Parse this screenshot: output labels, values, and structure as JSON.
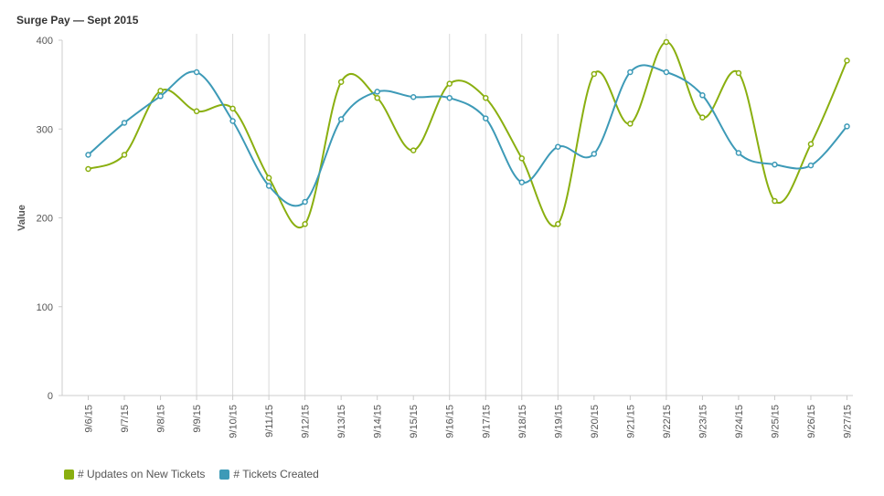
{
  "title": "Surge Pay — Sept 2015",
  "colors": {
    "series_1": "#8aaf10",
    "series_2": "#3d9ab7",
    "grid": "#d9d9d9",
    "axis": "#cccccc"
  },
  "chart_data": {
    "type": "line",
    "title": "Surge Pay — Sept 2015",
    "xlabel": "",
    "ylabel": "Value",
    "ylim": [
      0,
      400
    ],
    "yticks": [
      "0",
      "100",
      "200",
      "300",
      "400"
    ],
    "categories": [
      "9/6/15",
      "9/7/15",
      "9/8/15",
      "9/9/15",
      "9/10/15",
      "9/11/15",
      "9/12/15",
      "9/13/15",
      "9/14/15",
      "9/15/15",
      "9/16/15",
      "9/17/15",
      "9/18/15",
      "9/19/15",
      "9/20/15",
      "9/21/15",
      "9/22/15",
      "9/23/15",
      "9/24/15",
      "9/25/15",
      "9/26/15",
      "9/27/15"
    ],
    "vertical_lines_at": [
      "9/9/15",
      "9/10/15",
      "9/11/15",
      "9/12/15",
      "9/16/15",
      "9/17/15",
      "9/18/15",
      "9/19/15",
      "9/22/15"
    ],
    "legend_position": "bottom-left",
    "series": [
      {
        "name": "# Updates on New Tickets",
        "color": "#8aaf10",
        "values": [
          255,
          271,
          343,
          320,
          323,
          245,
          193,
          353,
          335,
          276,
          351,
          335,
          267,
          193,
          362,
          306,
          398,
          313,
          363,
          219,
          283,
          377
        ]
      },
      {
        "name": "# Tickets Created",
        "color": "#3d9ab7",
        "values": [
          271,
          307,
          337,
          364,
          309,
          236,
          218,
          311,
          342,
          336,
          335,
          312,
          240,
          280,
          272,
          364,
          364,
          338,
          273,
          260,
          259,
          303
        ]
      }
    ]
  }
}
